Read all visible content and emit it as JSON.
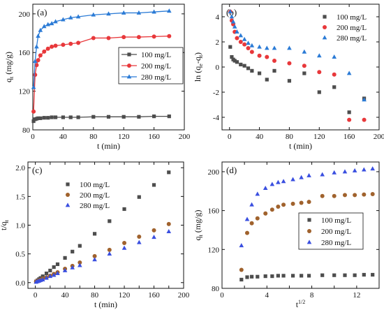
{
  "colors": {
    "100 mg/L": "#4d4d4d",
    "200 mg/L": "#e8383b",
    "280 mg/L": "#2b7bd6"
  },
  "chart_data": [
    {
      "type": "line",
      "panel": "(a)",
      "xlabel": "t (min)",
      "ylabel": "q_t (mg/g)",
      "xlim": [
        0,
        200
      ],
      "ylim": [
        80,
        210
      ],
      "xticks": [
        0,
        40,
        80,
        120,
        160,
        200
      ],
      "yticks": [
        80,
        120,
        160,
        200
      ],
      "legend_position": "center-right",
      "legend_boxed": true,
      "lines": true,
      "series": [
        {
          "name": "100 mg/L",
          "marker": "square",
          "color": "#4d4d4d",
          "x": [
            1,
            3,
            5,
            7,
            10,
            15,
            20,
            25,
            30,
            40,
            50,
            60,
            80,
            100,
            120,
            140,
            160,
            180
          ],
          "y": [
            89,
            91,
            91.5,
            92,
            92,
            92.5,
            92.5,
            93,
            93,
            93,
            93,
            93,
            93.5,
            93.5,
            93.5,
            93.5,
            94,
            94
          ]
        },
        {
          "name": "200 mg/L",
          "marker": "circle",
          "color": "#e8383b",
          "x": [
            1,
            3,
            5,
            7,
            10,
            15,
            20,
            25,
            30,
            40,
            50,
            60,
            80,
            100,
            120,
            140,
            160,
            180
          ],
          "y": [
            99,
            137,
            147,
            152,
            157,
            161,
            164,
            166,
            167,
            168,
            169,
            170,
            175,
            175,
            176,
            176,
            176.5,
            177
          ]
        },
        {
          "name": "280 mg/L",
          "marker": "triangle",
          "color": "#2b7bd6",
          "x": [
            1,
            3,
            5,
            7,
            10,
            15,
            20,
            25,
            30,
            40,
            50,
            60,
            80,
            100,
            120,
            140,
            160,
            180
          ],
          "y": [
            124,
            151,
            166,
            177,
            183,
            187,
            189,
            190,
            192,
            194,
            196,
            197,
            199,
            200,
            201,
            201,
            202,
            203
          ]
        }
      ]
    },
    {
      "type": "scatter",
      "panel": "(b)",
      "xlabel": "t (min)",
      "ylabel": "ln (q_e-q_t)",
      "xlim": [
        -10,
        200
      ],
      "ylim": [
        -5,
        5
      ],
      "xticks": [
        0,
        40,
        80,
        120,
        160,
        200
      ],
      "yticks": [
        -4,
        -2,
        0,
        2,
        4
      ],
      "legend_position": "top-right",
      "legend_boxed": false,
      "lines": false,
      "series": [
        {
          "name": "100 mg/L",
          "marker": "square",
          "color": "#4d4d4d",
          "x": [
            1,
            3,
            5,
            7,
            10,
            15,
            20,
            25,
            30,
            40,
            50,
            60,
            80,
            100,
            120,
            140,
            160,
            180
          ],
          "y": [
            1.6,
            0.8,
            0.6,
            0.5,
            0.4,
            0.2,
            0.1,
            -0.1,
            -0.3,
            -0.5,
            -1.0,
            -0.3,
            -1.1,
            -0.5,
            -2.0,
            -1.6,
            -3.6,
            -2.5
          ]
        },
        {
          "name": "200 mg/L",
          "marker": "circle",
          "color": "#e8383b",
          "x": [
            1,
            3,
            5,
            7,
            10,
            15,
            20,
            25,
            30,
            40,
            50,
            60,
            80,
            100,
            120,
            140,
            160,
            180
          ],
          "y": [
            4.4,
            3.7,
            3.4,
            2.8,
            2.3,
            2.0,
            1.8,
            1.5,
            1.2,
            0.9,
            0.8,
            0.5,
            0.3,
            0.1,
            -0.4,
            -0.6,
            -4.2,
            -4.2
          ]
        },
        {
          "name": "280 mg/L",
          "marker": "triangle",
          "color": "#2b7bd6",
          "x": [
            1,
            3,
            5,
            7,
            10,
            15,
            20,
            25,
            30,
            40,
            50,
            60,
            80,
            100,
            120,
            140,
            160,
            180
          ],
          "y": [
            4.4,
            4.0,
            3.6,
            3.2,
            2.8,
            2.5,
            2.2,
            1.9,
            1.7,
            1.6,
            1.5,
            1.5,
            1.5,
            1.2,
            0.9,
            0.8,
            -0.5,
            -2.6
          ]
        }
      ]
    },
    {
      "type": "scatter",
      "panel": "(c)",
      "xlabel": "t (min)",
      "ylabel": "t/q_t",
      "xlim": [
        -10,
        200
      ],
      "ylim": [
        -0.1,
        2.1
      ],
      "xticks": [
        0,
        20,
        40,
        60,
        80,
        100,
        120,
        140,
        160,
        180,
        200
      ],
      "xticklabels": [
        "0",
        "",
        "40",
        "",
        "80",
        "",
        "120",
        "",
        "160",
        "",
        "200"
      ],
      "yticks": [
        0.0,
        0.5,
        1.0,
        1.5,
        2.0
      ],
      "yticklabels": [
        "0.0",
        "0.5",
        "1.0",
        "1.5",
        "2.0"
      ],
      "legend_position": "top-center",
      "legend_boxed": false,
      "lines": false,
      "series": [
        {
          "name": "100 mg/L",
          "marker": "square",
          "color": "#4d4d4d",
          "x": [
            1,
            3,
            5,
            7,
            10,
            15,
            20,
            25,
            30,
            40,
            50,
            60,
            80,
            100,
            120,
            140,
            160,
            180
          ],
          "y": [
            0.02,
            0.04,
            0.06,
            0.08,
            0.11,
            0.16,
            0.21,
            0.27,
            0.32,
            0.43,
            0.54,
            0.64,
            0.85,
            1.07,
            1.28,
            1.49,
            1.7,
            1.92
          ]
        },
        {
          "name": "200 mg/L",
          "marker": "circle",
          "color": "#a0622d",
          "x": [
            1,
            3,
            5,
            7,
            10,
            15,
            20,
            25,
            30,
            40,
            50,
            60,
            80,
            100,
            120,
            140,
            160,
            180
          ],
          "y": [
            0.02,
            0.03,
            0.04,
            0.05,
            0.07,
            0.09,
            0.12,
            0.15,
            0.18,
            0.24,
            0.29,
            0.35,
            0.46,
            0.57,
            0.69,
            0.8,
            0.91,
            1.02
          ]
        },
        {
          "name": "280 mg/L",
          "marker": "triangle",
          "color": "#3a4fe0",
          "x": [
            1,
            3,
            5,
            7,
            10,
            15,
            20,
            25,
            30,
            40,
            50,
            60,
            80,
            100,
            120,
            140,
            160,
            180
          ],
          "y": [
            0.01,
            0.02,
            0.03,
            0.04,
            0.05,
            0.08,
            0.11,
            0.13,
            0.16,
            0.21,
            0.26,
            0.3,
            0.4,
            0.5,
            0.6,
            0.7,
            0.79,
            0.89
          ]
        }
      ]
    },
    {
      "type": "scatter",
      "panel": "(d)",
      "xlabel": "t^1/2",
      "ylabel": "q_t (mg/g)",
      "xlim": [
        0,
        14
      ],
      "ylim": [
        80,
        210
      ],
      "xticks": [
        0,
        2,
        4,
        6,
        8,
        10,
        12,
        14
      ],
      "xticklabels": [
        "0",
        "",
        "4",
        "",
        "8",
        "",
        "12",
        ""
      ],
      "yticks": [
        80,
        120,
        160,
        200
      ],
      "legend_position": "center-right",
      "legend_boxed": true,
      "lines": false,
      "series": [
        {
          "name": "100 mg/L",
          "marker": "square",
          "color": "#4d4d4d",
          "x": [
            1.73,
            2.24,
            2.65,
            3.16,
            3.87,
            4.47,
            5.0,
            5.48,
            6.32,
            7.07,
            7.75,
            8.94,
            10.0,
            10.95,
            11.83,
            12.65,
            13.42
          ],
          "y": [
            89,
            91.5,
            92,
            92,
            92.5,
            92.5,
            93,
            93,
            93,
            93,
            93,
            93.5,
            93.5,
            93.5,
            93.5,
            94,
            94
          ]
        },
        {
          "name": "200 mg/L",
          "marker": "circle",
          "color": "#a0622d",
          "x": [
            1.73,
            2.24,
            2.65,
            3.16,
            3.87,
            4.47,
            5.0,
            5.48,
            6.32,
            7.07,
            7.75,
            8.94,
            10.0,
            10.95,
            11.83,
            12.65,
            13.42
          ],
          "y": [
            99,
            137,
            147,
            152,
            157,
            161,
            164,
            166,
            167,
            168,
            169,
            175,
            175,
            176,
            176,
            176.5,
            177
          ]
        },
        {
          "name": "280 mg/L",
          "marker": "triangle",
          "color": "#3a4fe0",
          "x": [
            1.73,
            2.24,
            2.65,
            3.16,
            3.87,
            4.47,
            5.0,
            5.48,
            6.32,
            7.07,
            7.75,
            8.94,
            10.0,
            10.95,
            11.83,
            12.65,
            13.42
          ],
          "y": [
            124,
            151,
            166,
            177,
            183,
            187,
            189,
            190,
            192,
            194,
            196,
            197,
            199,
            200,
            201,
            202,
            203
          ]
        }
      ]
    }
  ]
}
